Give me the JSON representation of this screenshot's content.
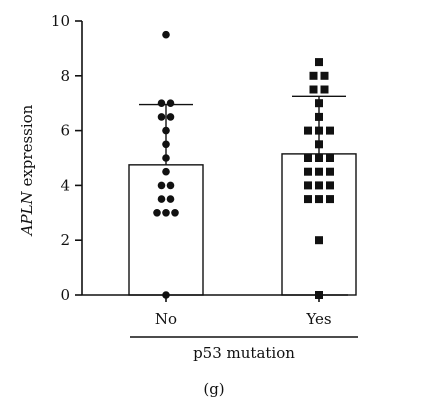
{
  "chart_data": {
    "type": "bar",
    "ylabel": "APLN expression",
    "ylabel_italic_part": "APLN",
    "ylabel_rest": " expression",
    "ylim": [
      0,
      10
    ],
    "yticks": [
      0,
      2,
      4,
      6,
      8,
      10
    ],
    "categories": [
      "No",
      "Yes"
    ],
    "group_label": "p53 mutation",
    "panel_label": "(g)",
    "series": [
      {
        "category": "No",
        "mean": 4.75,
        "sd_upper": 6.95,
        "marker": "circle",
        "points": [
          9.5,
          7.0,
          7.0,
          6.5,
          6.5,
          6.0,
          5.5,
          5.0,
          4.5,
          4.0,
          4.0,
          3.5,
          3.5,
          3.0,
          3.0,
          3.0,
          0.0
        ]
      },
      {
        "category": "Yes",
        "mean": 5.15,
        "sd_upper": 7.25,
        "marker": "square",
        "points": [
          8.5,
          8.0,
          8.0,
          7.5,
          7.5,
          7.0,
          6.5,
          6.0,
          6.0,
          6.0,
          5.5,
          5.0,
          5.0,
          5.0,
          4.5,
          4.5,
          4.5,
          4.0,
          4.0,
          4.0,
          3.5,
          3.5,
          3.5,
          2.0,
          0.0
        ]
      }
    ]
  }
}
